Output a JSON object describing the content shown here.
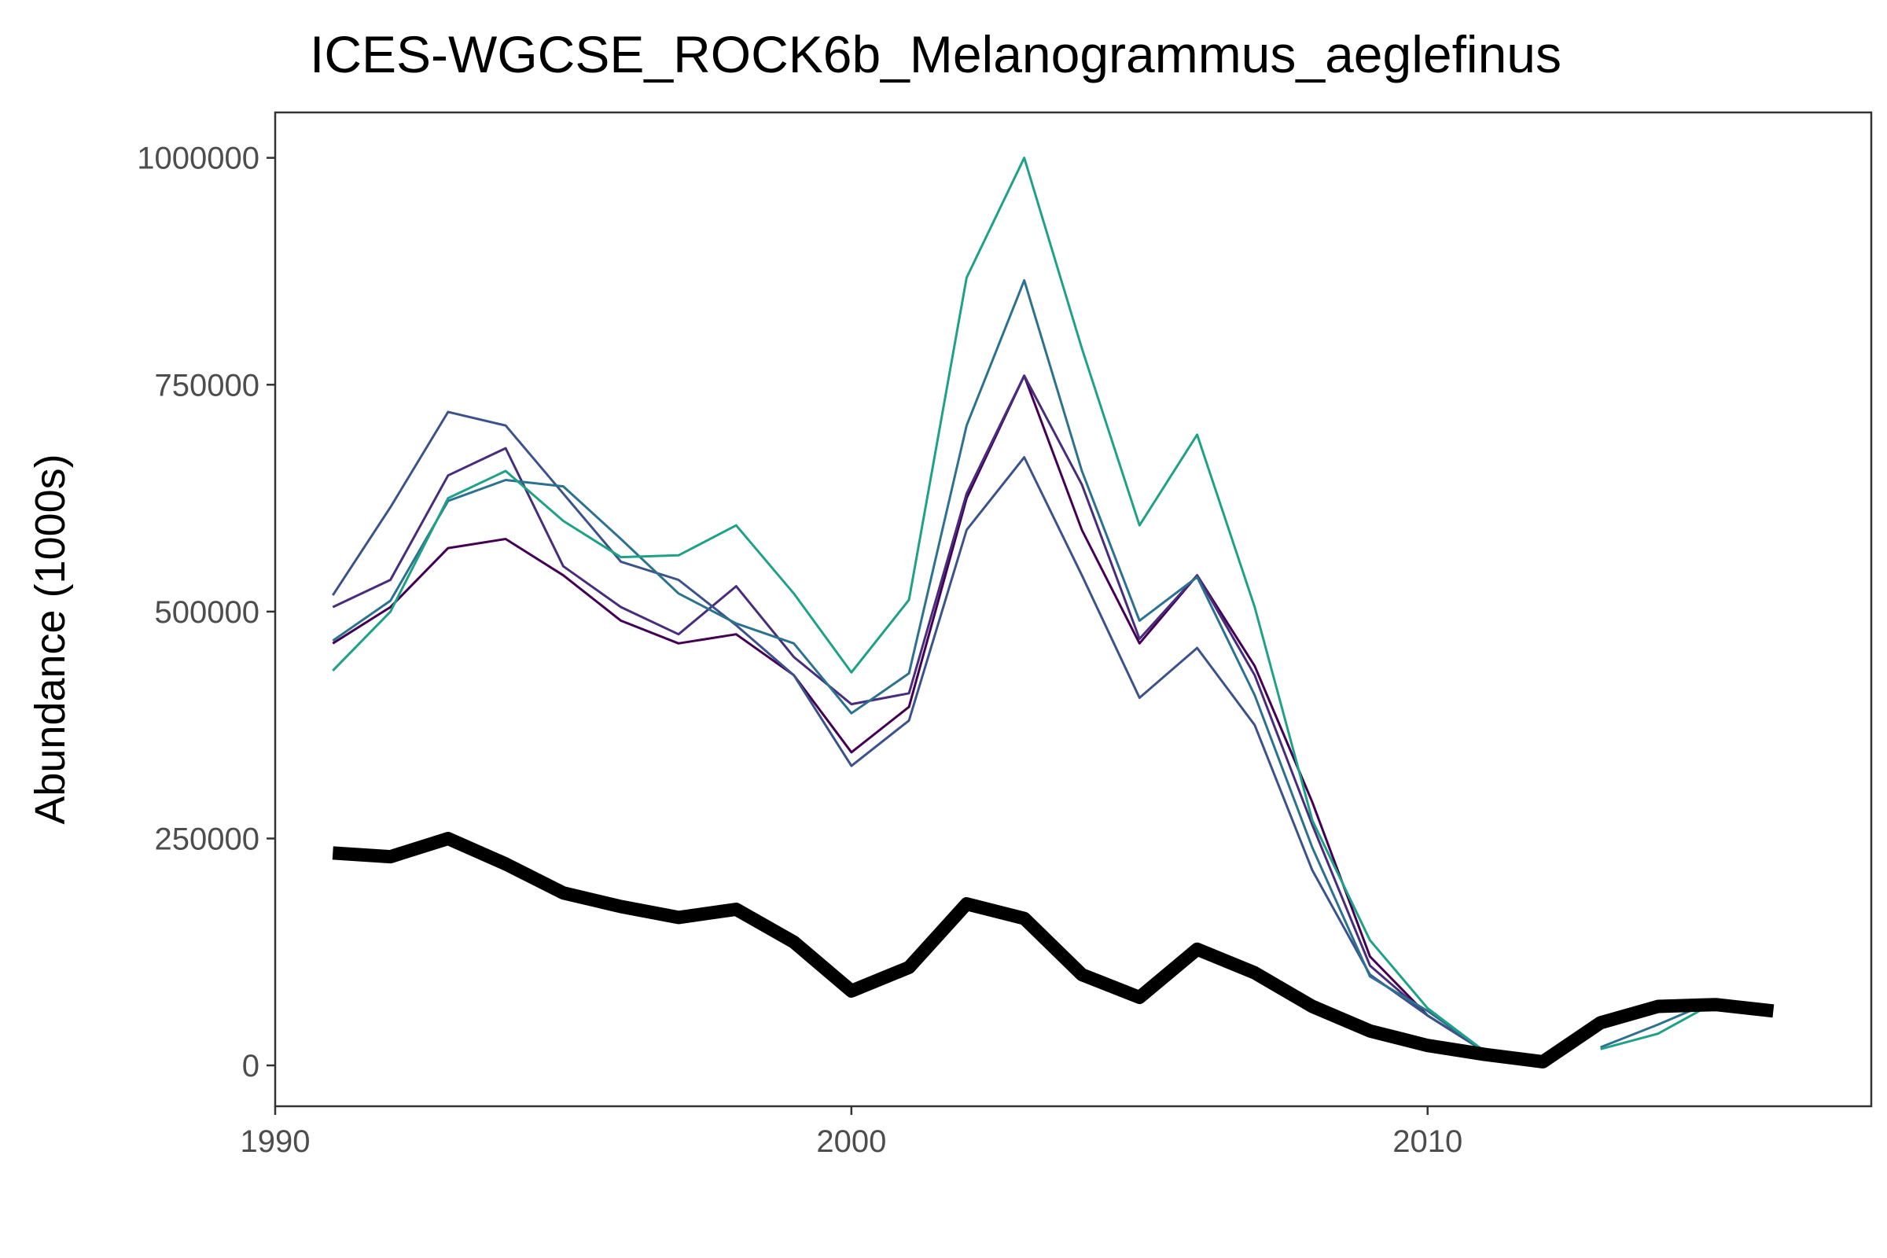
{
  "chart_data": {
    "type": "line",
    "title": "ICES-WGCSE_ROCK6b_Melanogrammus_aeglefinus",
    "xlabel": "",
    "ylabel": "Abundance (1000s)",
    "xlim": [
      1990,
      2017.7
    ],
    "ylim": [
      -45000,
      1050000
    ],
    "x_ticks": [
      1990,
      2000,
      2010
    ],
    "y_ticks": [
      0,
      250000,
      500000,
      750000,
      1000000
    ],
    "x_tick_labels": [
      "1990",
      "2000",
      "2010"
    ],
    "y_tick_labels": [
      "0",
      "250000",
      "500000",
      "750000",
      "1000000"
    ],
    "grid": false,
    "legend": "none",
    "x": [
      1991,
      1992,
      1993,
      1994,
      1995,
      1996,
      1997,
      1998,
      1999,
      2000,
      2001,
      2002,
      2003,
      2004,
      2005,
      2006,
      2007,
      2008,
      2009,
      2010,
      2011,
      2012,
      2013,
      2014,
      2015,
      2016
    ],
    "series": [
      {
        "color": "#440154",
        "width": 3,
        "values": [
          465000,
          505000,
          570000,
          580000,
          540000,
          490000,
          465000,
          475000,
          430000,
          345000,
          395000,
          625000,
          760000,
          590000,
          465000,
          540000,
          440000,
          290000,
          120000,
          55000,
          15000,
          null,
          null,
          null,
          null,
          null
        ]
      },
      {
        "color": "#472D7B",
        "width": 3,
        "values": [
          505000,
          535000,
          650000,
          680000,
          550000,
          505000,
          475000,
          528000,
          450000,
          398000,
          410000,
          630000,
          760000,
          640000,
          470000,
          540000,
          430000,
          265000,
          110000,
          55000,
          15000,
          null,
          null,
          null,
          null,
          null
        ]
      },
      {
        "color": "#3B528B",
        "width": 3,
        "values": [
          518000,
          615000,
          720000,
          705000,
          630000,
          555000,
          535000,
          485000,
          430000,
          330000,
          380000,
          590000,
          670000,
          540000,
          405000,
          460000,
          375000,
          215000,
          100000,
          55000,
          15000,
          null,
          null,
          null,
          null,
          null
        ]
      },
      {
        "color": "#2C728E",
        "width": 3,
        "values": [
          468000,
          512000,
          622000,
          645000,
          638000,
          580000,
          520000,
          487000,
          465000,
          388000,
          432000,
          705000,
          865000,
          655000,
          490000,
          538000,
          408000,
          240000,
          98000,
          60000,
          15000,
          null,
          20000,
          45000,
          72000,
          null
        ]
      },
      {
        "color": "#1FA187",
        "width": 3,
        "values": [
          435000,
          500000,
          625000,
          655000,
          600000,
          560000,
          562000,
          595000,
          520000,
          433000,
          513000,
          868000,
          1000000,
          790000,
          595000,
          695000,
          505000,
          270000,
          138000,
          63000,
          15000,
          null,
          18000,
          35000,
          70000,
          null
        ]
      },
      {
        "color": "#000000",
        "width": 17,
        "values": [
          234000,
          230000,
          250000,
          222000,
          190000,
          175000,
          163000,
          172000,
          136000,
          82000,
          108000,
          178000,
          162000,
          100000,
          75000,
          128000,
          102000,
          65000,
          38000,
          22000,
          12000,
          4000,
          47000,
          65000,
          67000,
          60000
        ]
      }
    ]
  }
}
